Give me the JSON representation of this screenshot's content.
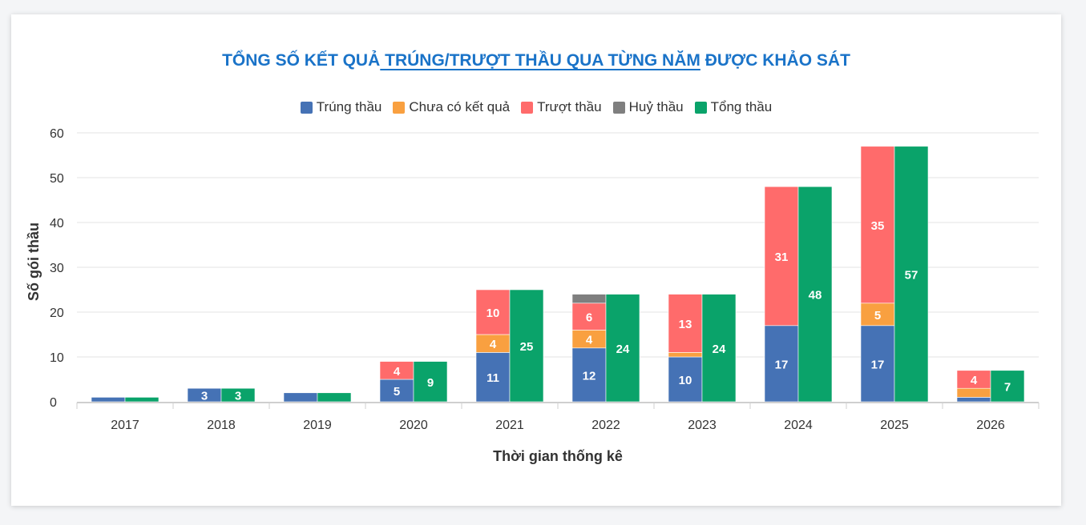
{
  "title_parts": [
    "TỔNG SỐ KẾT QUẢ",
    " TRÚNG/TRƯỢT THẦU QUA TỪNG NĂM",
    " ĐƯỢC KHẢO SÁT"
  ],
  "colors": {
    "trung": "#4572b5",
    "chua": "#f9a040",
    "truot": "#ff6b6b",
    "huy": "#7f7f7f",
    "tong": "#0aa36a"
  },
  "chart_data": {
    "type": "bar",
    "stacked": true,
    "xlabel": "Thời gian thống kê",
    "ylabel": "Số gói thầu",
    "ylim": [
      0,
      60
    ],
    "yticks": [
      0,
      10,
      20,
      30,
      40,
      50,
      60
    ],
    "grid": true,
    "legend_position": "top-center",
    "categories": [
      "2017",
      "2018",
      "2019",
      "2020",
      "2021",
      "2022",
      "2023",
      "2024",
      "2025",
      "2026"
    ],
    "series": [
      {
        "name": "Trúng thầu",
        "stack": "a",
        "color_key": "trung",
        "values": [
          1,
          3,
          2,
          5,
          11,
          12,
          10,
          17,
          17,
          1
        ]
      },
      {
        "name": "Chưa có kết quả",
        "stack": "a",
        "color_key": "chua",
        "values": [
          0,
          0,
          0,
          0,
          4,
          4,
          1,
          0,
          5,
          2
        ]
      },
      {
        "name": "Trượt thầu",
        "stack": "a",
        "color_key": "truot",
        "values": [
          0,
          0,
          0,
          4,
          10,
          6,
          13,
          31,
          35,
          4
        ]
      },
      {
        "name": "Huỷ thầu",
        "stack": "a",
        "color_key": "huy",
        "values": [
          0,
          0,
          0,
          0,
          0,
          2,
          0,
          0,
          0,
          0
        ]
      },
      {
        "name": "Tổng thầu",
        "stack": "b",
        "color_key": "tong",
        "values": [
          1,
          3,
          2,
          9,
          25,
          24,
          24,
          48,
          57,
          7
        ]
      }
    ],
    "data_labels": {
      "Trúng thầu": [
        null,
        "3",
        null,
        "5",
        "11",
        "12",
        "10",
        "17",
        "17",
        null
      ],
      "Chưa có kết quả": [
        null,
        null,
        null,
        null,
        "4",
        "4",
        null,
        null,
        "5",
        null
      ],
      "Trượt thầu": [
        null,
        null,
        null,
        "4",
        "10",
        "6",
        "13",
        "31",
        "35",
        "4"
      ],
      "Huỷ thầu": [
        null,
        null,
        null,
        null,
        null,
        null,
        null,
        null,
        null,
        null
      ],
      "Tổng thầu": [
        null,
        "3",
        null,
        "9",
        "25",
        "24",
        "24",
        "48",
        "57",
        "7"
      ]
    }
  }
}
